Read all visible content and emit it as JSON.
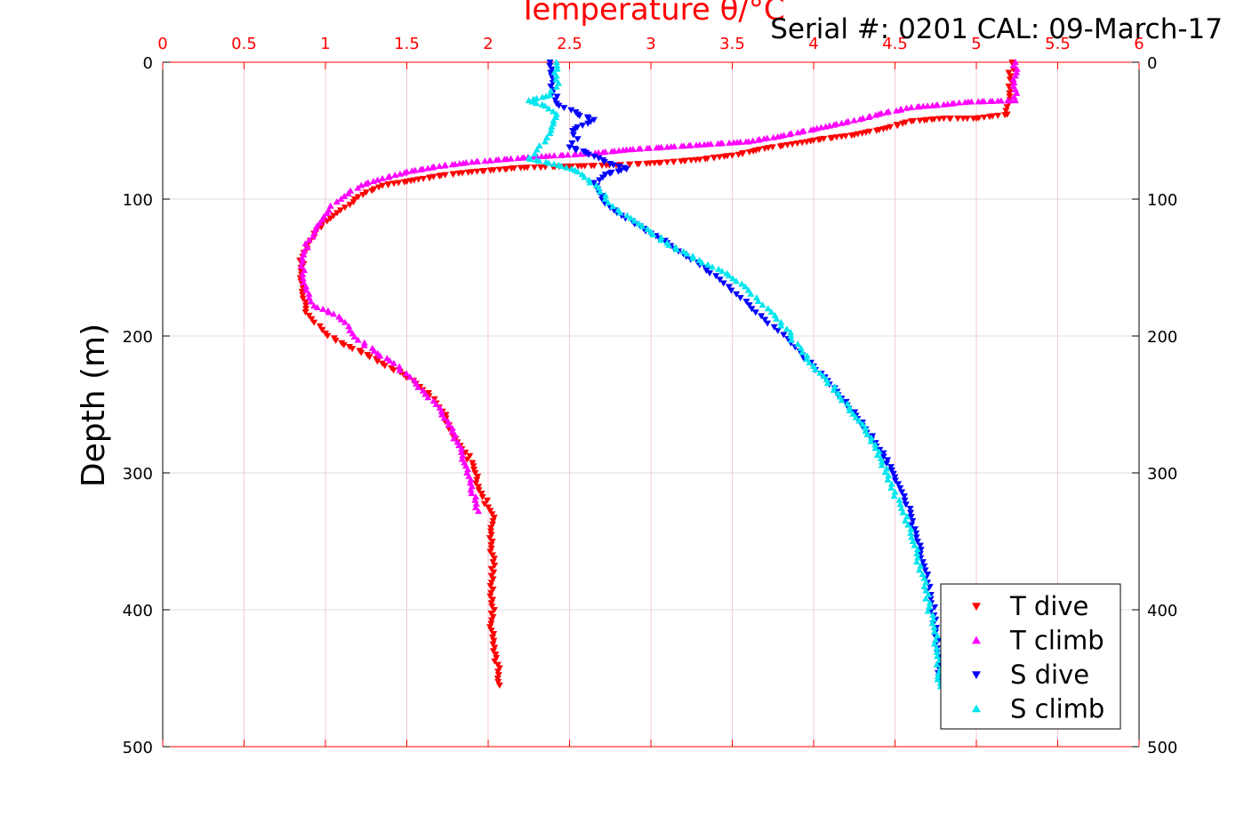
{
  "chart_data": {
    "type": "scatter",
    "title": "Temperature θ/°C",
    "subtitle": "Serial #: 0201  CAL: 09-March-17",
    "xlabel": "Temperature θ/°C",
    "ylabel": "Depth (m)",
    "xlim": [
      0,
      6
    ],
    "ylim": [
      500,
      0
    ],
    "y_reversed": true,
    "x_axis_position": "top",
    "x_ticks": [
      "0",
      "0.5",
      "1",
      "1.5",
      "2",
      "2.5",
      "3",
      "3.5",
      "4",
      "4.5",
      "5",
      "5.5",
      "6"
    ],
    "y_ticks": [
      "0",
      "100",
      "200",
      "300",
      "400",
      "500"
    ],
    "grid": true,
    "legend_position": "bottom-right",
    "colors": {
      "axis_top": "#ff0000",
      "axis_other": "#000000",
      "grid_vertical": "#f4c9d4",
      "grid_horizontal": "#dcdcdc",
      "t_dive": "#ff0000",
      "t_climb": "#ff00ff",
      "s_dive": "#0000ff",
      "s_climb": "#00e5ee"
    },
    "series": [
      {
        "name": "T dive",
        "marker": "triangle-down",
        "color": "#ff0000",
        "points": [
          [
            5.22,
            0
          ],
          [
            5.21,
            10
          ],
          [
            5.21,
            20
          ],
          [
            5.2,
            30
          ],
          [
            5.19,
            38
          ],
          [
            5.0,
            41
          ],
          [
            4.8,
            41
          ],
          [
            4.6,
            43
          ],
          [
            4.45,
            48
          ],
          [
            4.25,
            53
          ],
          [
            4.0,
            57
          ],
          [
            3.7,
            63
          ],
          [
            3.5,
            68
          ],
          [
            3.3,
            71
          ],
          [
            3.1,
            73
          ],
          [
            2.8,
            75
          ],
          [
            2.5,
            76
          ],
          [
            2.2,
            77
          ],
          [
            1.9,
            80
          ],
          [
            1.7,
            83
          ],
          [
            1.5,
            87
          ],
          [
            1.35,
            90
          ],
          [
            1.25,
            95
          ],
          [
            1.18,
            100
          ],
          [
            1.12,
            106
          ],
          [
            1.05,
            112
          ],
          [
            0.98,
            118
          ],
          [
            0.93,
            125
          ],
          [
            0.89,
            133
          ],
          [
            0.86,
            142
          ],
          [
            0.85,
            150
          ],
          [
            0.85,
            160
          ],
          [
            0.86,
            170
          ],
          [
            0.88,
            180
          ],
          [
            0.93,
            190
          ],
          [
            1.0,
            198
          ],
          [
            1.1,
            205
          ],
          [
            1.22,
            212
          ],
          [
            1.35,
            220
          ],
          [
            1.48,
            228
          ],
          [
            1.58,
            237
          ],
          [
            1.67,
            246
          ],
          [
            1.72,
            255
          ],
          [
            1.76,
            265
          ],
          [
            1.8,
            275
          ],
          [
            1.86,
            285
          ],
          [
            1.91,
            295
          ],
          [
            1.93,
            305
          ],
          [
            1.96,
            315
          ],
          [
            2.0,
            325
          ],
          [
            2.03,
            335
          ],
          [
            2.02,
            345
          ],
          [
            2.02,
            355
          ],
          [
            2.03,
            365
          ],
          [
            2.02,
            375
          ],
          [
            2.03,
            385
          ],
          [
            2.02,
            395
          ],
          [
            2.03,
            405
          ],
          [
            2.02,
            415
          ],
          [
            2.03,
            425
          ],
          [
            2.05,
            435
          ],
          [
            2.06,
            445
          ],
          [
            2.07,
            455
          ]
        ]
      },
      {
        "name": "T climb",
        "marker": "triangle-up",
        "color": "#ff00ff",
        "points": [
          [
            5.24,
            0
          ],
          [
            5.24,
            10
          ],
          [
            5.24,
            20
          ],
          [
            5.24,
            28
          ],
          [
            4.95,
            29
          ],
          [
            4.8,
            31
          ],
          [
            4.6,
            33
          ],
          [
            4.4,
            38
          ],
          [
            4.2,
            44
          ],
          [
            4.0,
            49
          ],
          [
            3.8,
            54
          ],
          [
            3.6,
            58
          ],
          [
            3.35,
            60
          ],
          [
            3.1,
            62
          ],
          [
            2.85,
            64
          ],
          [
            2.6,
            67
          ],
          [
            2.3,
            69
          ],
          [
            2.1,
            71
          ],
          [
            1.9,
            73
          ],
          [
            1.7,
            76
          ],
          [
            1.5,
            80
          ],
          [
            1.35,
            85
          ],
          [
            1.22,
            90
          ],
          [
            1.14,
            96
          ],
          [
            1.07,
            102
          ],
          [
            1.02,
            108
          ],
          [
            0.98,
            115
          ],
          [
            0.94,
            122
          ],
          [
            0.9,
            130
          ],
          [
            0.87,
            138
          ],
          [
            0.86,
            146
          ],
          [
            0.86,
            155
          ],
          [
            0.88,
            164
          ],
          [
            0.9,
            172
          ],
          [
            0.93,
            178
          ],
          [
            1.05,
            184
          ],
          [
            1.12,
            190
          ],
          [
            1.15,
            196
          ],
          [
            1.2,
            203
          ],
          [
            1.3,
            211
          ],
          [
            1.42,
            220
          ],
          [
            1.52,
            230
          ],
          [
            1.6,
            240
          ],
          [
            1.68,
            250
          ],
          [
            1.73,
            260
          ],
          [
            1.78,
            270
          ],
          [
            1.82,
            280
          ],
          [
            1.84,
            290
          ],
          [
            1.87,
            300
          ],
          [
            1.9,
            310
          ],
          [
            1.92,
            320
          ],
          [
            1.94,
            328
          ]
        ]
      },
      {
        "name": "S dive",
        "marker": "triangle-down",
        "color": "#0000ff",
        "points": [
          [
            2.38,
            0
          ],
          [
            2.39,
            10
          ],
          [
            2.4,
            20
          ],
          [
            2.42,
            30
          ],
          [
            2.55,
            38
          ],
          [
            2.65,
            42
          ],
          [
            2.58,
            46
          ],
          [
            2.52,
            50
          ],
          [
            2.55,
            56
          ],
          [
            2.5,
            62
          ],
          [
            2.6,
            66
          ],
          [
            2.68,
            70
          ],
          [
            2.75,
            74
          ],
          [
            2.85,
            78
          ],
          [
            2.72,
            82
          ],
          [
            2.65,
            88
          ],
          [
            2.68,
            95
          ],
          [
            2.7,
            100
          ],
          [
            2.75,
            106
          ],
          [
            2.82,
            112
          ],
          [
            2.9,
            118
          ],
          [
            3.0,
            125
          ],
          [
            3.1,
            132
          ],
          [
            3.2,
            140
          ],
          [
            3.3,
            148
          ],
          [
            3.4,
            156
          ],
          [
            3.48,
            164
          ],
          [
            3.55,
            172
          ],
          [
            3.62,
            180
          ],
          [
            3.7,
            188
          ],
          [
            3.78,
            196
          ],
          [
            3.86,
            205
          ],
          [
            3.93,
            214
          ],
          [
            4.0,
            222
          ],
          [
            4.07,
            230
          ],
          [
            4.13,
            238
          ],
          [
            4.2,
            248
          ],
          [
            4.26,
            258
          ],
          [
            4.32,
            268
          ],
          [
            4.38,
            278
          ],
          [
            4.43,
            288
          ],
          [
            4.48,
            298
          ],
          [
            4.52,
            308
          ],
          [
            4.56,
            320
          ],
          [
            4.6,
            332
          ],
          [
            4.63,
            344
          ],
          [
            4.66,
            356
          ],
          [
            4.68,
            368
          ],
          [
            4.7,
            380
          ],
          [
            4.72,
            392
          ],
          [
            4.74,
            404
          ],
          [
            4.75,
            416
          ],
          [
            4.76,
            428
          ],
          [
            4.77,
            440
          ],
          [
            4.78,
            452
          ]
        ]
      },
      {
        "name": "S climb",
        "marker": "triangle-up",
        "color": "#00e5ee",
        "points": [
          [
            2.42,
            0
          ],
          [
            2.42,
            10
          ],
          [
            2.42,
            18
          ],
          [
            2.38,
            24
          ],
          [
            2.25,
            28
          ],
          [
            2.35,
            32
          ],
          [
            2.42,
            38
          ],
          [
            2.4,
            45
          ],
          [
            2.38,
            52
          ],
          [
            2.35,
            58
          ],
          [
            2.3,
            64
          ],
          [
            2.25,
            70
          ],
          [
            2.45,
            76
          ],
          [
            2.55,
            80
          ],
          [
            2.62,
            86
          ],
          [
            2.68,
            92
          ],
          [
            2.72,
            100
          ],
          [
            2.8,
            108
          ],
          [
            2.9,
            116
          ],
          [
            3.0,
            124
          ],
          [
            3.1,
            132
          ],
          [
            3.22,
            140
          ],
          [
            3.35,
            148
          ],
          [
            3.48,
            156
          ],
          [
            3.58,
            164
          ],
          [
            3.65,
            172
          ],
          [
            3.72,
            180
          ],
          [
            3.8,
            190
          ],
          [
            3.86,
            200
          ],
          [
            3.93,
            212
          ],
          [
            4.0,
            222
          ],
          [
            4.08,
            232
          ],
          [
            4.15,
            242
          ],
          [
            4.22,
            252
          ],
          [
            4.28,
            262
          ],
          [
            4.33,
            272
          ],
          [
            4.38,
            282
          ],
          [
            4.42,
            292
          ],
          [
            4.46,
            302
          ],
          [
            4.5,
            314
          ],
          [
            4.54,
            326
          ],
          [
            4.58,
            338
          ],
          [
            4.61,
            350
          ],
          [
            4.64,
            362
          ],
          [
            4.67,
            374
          ],
          [
            4.69,
            386
          ],
          [
            4.71,
            398
          ],
          [
            4.73,
            410
          ],
          [
            4.75,
            422
          ],
          [
            4.76,
            434
          ],
          [
            4.77,
            446
          ],
          [
            4.78,
            456
          ]
        ]
      }
    ]
  }
}
